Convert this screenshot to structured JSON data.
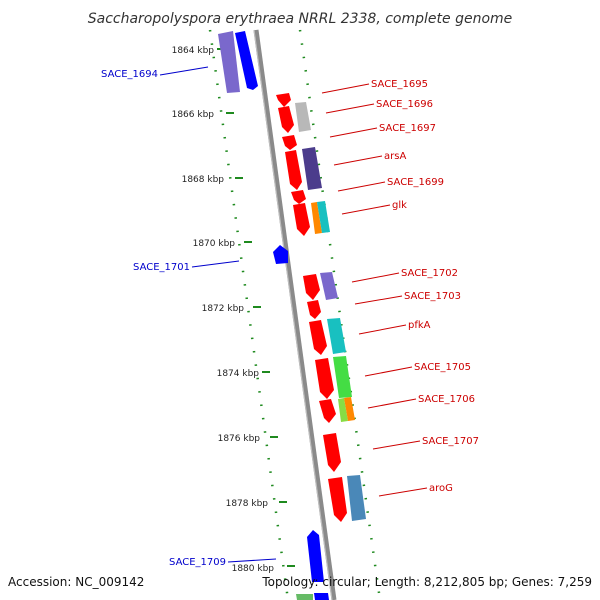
{
  "title": "Saccharopolyspora erythraea NRRL 2338, complete genome",
  "footer": {
    "accession": "Accession: NC_009142",
    "stats": "Topology: circular; Length: 8,212,805 bp; Genes: 7,259"
  },
  "colors": {
    "backbone": "#8a8a8a",
    "ticks": "#1f8a1f",
    "forward_cds": "#ff0000",
    "reverse_cds": "#0000ff",
    "label_left": "#0000cc",
    "label_right": "#cc0000"
  },
  "ticks": [
    {
      "label": "1864 kbp"
    },
    {
      "label": "1866 kbp"
    },
    {
      "label": "1868 kbp"
    },
    {
      "label": "1870 kbp"
    },
    {
      "label": "1872 kbp"
    },
    {
      "label": "1874 kbp"
    },
    {
      "label": "1876 kbp"
    },
    {
      "label": "1878 kbp"
    },
    {
      "label": "1880 kbp"
    }
  ],
  "genes_left": [
    {
      "name": "SACE_1694"
    },
    {
      "name": "SACE_1701"
    },
    {
      "name": "SACE_1709"
    }
  ],
  "genes_right": [
    {
      "name": "SACE_1695"
    },
    {
      "name": "SACE_1696"
    },
    {
      "name": "SACE_1697"
    },
    {
      "name": "arsA"
    },
    {
      "name": "SACE_1699"
    },
    {
      "name": "glk"
    },
    {
      "name": "SACE_1702"
    },
    {
      "name": "SACE_1703"
    },
    {
      "name": "pfkA"
    },
    {
      "name": "SACE_1705"
    },
    {
      "name": "SACE_1706"
    },
    {
      "name": "SACE_1707"
    },
    {
      "name": "aroG"
    }
  ]
}
